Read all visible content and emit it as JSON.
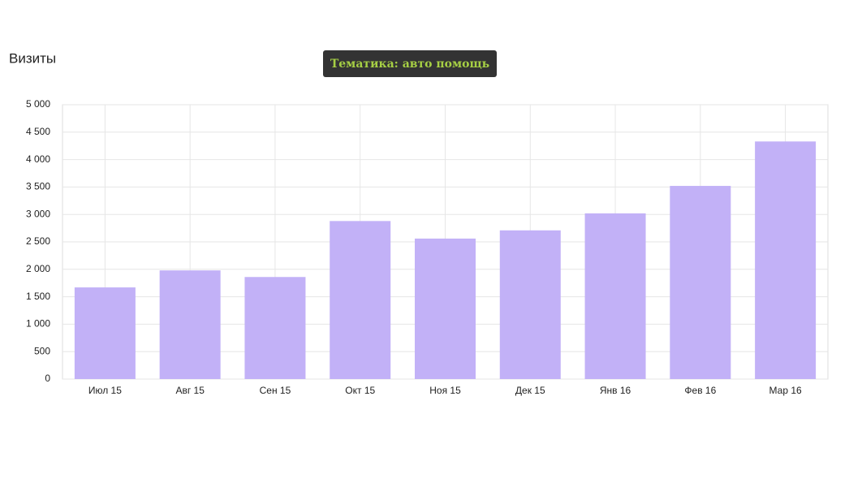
{
  "chart_data": {
    "type": "bar",
    "title": "Визиты",
    "annotation": "Тематика: авто помощь",
    "categories": [
      "Июл 15",
      "Авг 15",
      "Сен 15",
      "Окт 15",
      "Ноя 15",
      "Дек 15",
      "Янв 16",
      "Фев 16",
      "Мар 16"
    ],
    "values": [
      1670,
      1980,
      1860,
      2880,
      2560,
      2710,
      3020,
      3520,
      4330
    ],
    "color": "#c2b1f7",
    "ylim": [
      0,
      5000
    ],
    "yticks": [
      0,
      500,
      {
        "value": 1000,
        "label": "1 000"
      },
      {
        "value": 1500,
        "label": "1 500"
      },
      {
        "value": 2000,
        "label": "2 000"
      },
      {
        "value": 2500,
        "label": "2 500"
      },
      {
        "value": 3000,
        "label": "3 000"
      },
      {
        "value": 3500,
        "label": "3 500"
      },
      {
        "value": 4000,
        "label": "4 000"
      },
      {
        "value": 4500,
        "label": "4 500"
      },
      {
        "value": 5000,
        "label": "5 000"
      }
    ],
    "grid": true
  }
}
